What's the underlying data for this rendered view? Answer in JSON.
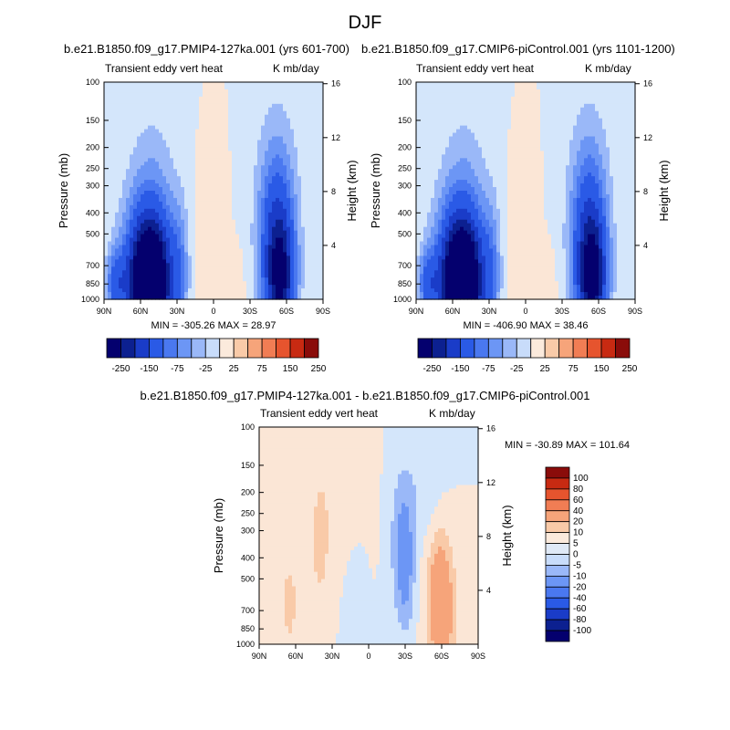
{
  "figure": {
    "title": "DJF"
  },
  "chart_data": [
    {
      "type": "heatmap",
      "case": "b.e21.B1850.f09_g17.PMIP4-127ka.001 (yrs 601-700)",
      "left_label": "Transient eddy vert heat",
      "right_label": "K mb/day",
      "xlabel": "",
      "ylabel": "Pressure (mb)",
      "y2label": "Height (km)",
      "x_ticks": [
        "90N",
        "60N",
        "30N",
        "0",
        "30S",
        "60S",
        "90S"
      ],
      "y_ticks": [
        "100",
        "150",
        "200",
        "250",
        "300",
        "400",
        "500",
        "700",
        "850",
        "1000"
      ],
      "y_tick_values": [
        100,
        150,
        200,
        250,
        300,
        400,
        500,
        700,
        850,
        1000
      ],
      "y2_ticks": [
        "16",
        "12",
        "8",
        "4"
      ],
      "y2_tick_values": [
        16,
        12,
        8,
        4
      ],
      "ylim": [
        1000,
        100
      ],
      "stats": "MIN = -305.26  MAX = 28.97",
      "min": -305.26,
      "max": 28.97,
      "blobs": [
        {
          "lat": 52,
          "p": 850,
          "w": 14,
          "d": 0.55,
          "a": -300
        },
        {
          "lat": 56,
          "p": 800,
          "w": 20,
          "d": 0.75,
          "a": -120
        },
        {
          "lat": 52,
          "p": 650,
          "w": 18,
          "d": 1.0,
          "a": -60
        },
        {
          "lat": 50,
          "p": 450,
          "w": 22,
          "d": 1.3,
          "a": -30
        },
        {
          "lat": 80,
          "p": 850,
          "w": 8,
          "d": 0.35,
          "a": -100
        },
        {
          "lat": 28,
          "p": 750,
          "w": 8,
          "d": 0.7,
          "a": -60
        },
        {
          "lat": -55,
          "p": 820,
          "w": 11,
          "d": 0.6,
          "a": -180
        },
        {
          "lat": -52,
          "p": 550,
          "w": 14,
          "d": 0.9,
          "a": -110
        },
        {
          "lat": -52,
          "p": 400,
          "w": 18,
          "d": 1.2,
          "a": -45
        },
        {
          "lat": 5,
          "p": 650,
          "w": 12,
          "d": 0.9,
          "a": 20
        },
        {
          "lat": -20,
          "p": 850,
          "w": 8,
          "d": 0.4,
          "a": 10
        }
      ]
    },
    {
      "type": "heatmap",
      "case": "b.e21.B1850.f09_g17.CMIP6-piControl.001 (yrs 1101-1200)",
      "left_label": "Transient eddy vert heat",
      "right_label": "K mb/day",
      "xlabel": "",
      "ylabel": "Pressure (mb)",
      "y2label": "Height (km)",
      "x_ticks": [
        "90N",
        "60N",
        "30N",
        "0",
        "30S",
        "60S",
        "90S"
      ],
      "y_ticks": [
        "100",
        "150",
        "200",
        "250",
        "300",
        "400",
        "500",
        "700",
        "850",
        "1000"
      ],
      "y_tick_values": [
        100,
        150,
        200,
        250,
        300,
        400,
        500,
        700,
        850,
        1000
      ],
      "y2_ticks": [
        "16",
        "12",
        "8",
        "4"
      ],
      "y2_tick_values": [
        16,
        12,
        8,
        4
      ],
      "ylim": [
        1000,
        100
      ],
      "stats": "MIN = -406.90  MAX = 38.46",
      "min": -406.9,
      "max": 38.46,
      "blobs": [
        {
          "lat": 52,
          "p": 850,
          "w": 14,
          "d": 0.55,
          "a": -300
        },
        {
          "lat": 56,
          "p": 800,
          "w": 20,
          "d": 0.75,
          "a": -120
        },
        {
          "lat": 52,
          "p": 650,
          "w": 18,
          "d": 1.0,
          "a": -60
        },
        {
          "lat": 50,
          "p": 450,
          "w": 22,
          "d": 1.3,
          "a": -30
        },
        {
          "lat": 80,
          "p": 850,
          "w": 8,
          "d": 0.35,
          "a": -100
        },
        {
          "lat": 28,
          "p": 750,
          "w": 8,
          "d": 0.7,
          "a": -60
        },
        {
          "lat": -55,
          "p": 820,
          "w": 11,
          "d": 0.6,
          "a": -200
        },
        {
          "lat": -52,
          "p": 550,
          "w": 14,
          "d": 0.9,
          "a": -110
        },
        {
          "lat": -52,
          "p": 400,
          "w": 18,
          "d": 1.2,
          "a": -45
        },
        {
          "lat": 5,
          "p": 650,
          "w": 12,
          "d": 0.9,
          "a": 20
        },
        {
          "lat": -20,
          "p": 850,
          "w": 8,
          "d": 0.4,
          "a": 10
        }
      ]
    },
    {
      "type": "heatmap",
      "case": "b.e21.B1850.f09_g17.PMIP4-127ka.001 - b.e21.B1850.f09_g17.CMIP6-piControl.001",
      "left_label": "Transient eddy vert heat",
      "right_label": "K mb/day",
      "xlabel": "",
      "ylabel": "Pressure (mb)",
      "y2label": "Height (km)",
      "x_ticks": [
        "90N",
        "60N",
        "30N",
        "0",
        "30S",
        "60S",
        "90S"
      ],
      "y_ticks": [
        "100",
        "150",
        "200",
        "250",
        "300",
        "400",
        "500",
        "700",
        "850",
        "1000"
      ],
      "y_tick_values": [
        100,
        150,
        200,
        250,
        300,
        400,
        500,
        700,
        850,
        1000
      ],
      "y2_ticks": [
        "16",
        "12",
        "8",
        "4"
      ],
      "y2_tick_values": [
        16,
        12,
        8,
        4
      ],
      "ylim": [
        1000,
        100
      ],
      "stats": "MIN = -30.89  MAX = 101.64",
      "min": -30.89,
      "max": 101.64,
      "blobs": [
        {
          "lat": -60,
          "p": 750,
          "w": 12,
          "d": 0.7,
          "a": 14
        },
        {
          "lat": -58,
          "p": 500,
          "w": 9,
          "d": 0.6,
          "a": 8
        },
        {
          "lat": -30,
          "p": 430,
          "w": 8,
          "d": 0.7,
          "a": -12
        },
        {
          "lat": -25,
          "p": 300,
          "w": 10,
          "d": 0.8,
          "a": -5
        },
        {
          "lat": 40,
          "p": 350,
          "w": 7,
          "d": 0.6,
          "a": 7
        },
        {
          "lat": 65,
          "p": 650,
          "w": 10,
          "d": 0.7,
          "a": 6
        },
        {
          "lat": 10,
          "p": 700,
          "w": 8,
          "d": 0.6,
          "a": -5
        },
        {
          "lat": -45,
          "p": 180,
          "w": 15,
          "d": 0.6,
          "a": -4
        },
        {
          "lat": 25,
          "p": 200,
          "w": 25,
          "d": 0.8,
          "a": 3
        }
      ]
    }
  ],
  "colorbars": [
    {
      "orientation": "horizontal",
      "labels": [
        "-250",
        "-150",
        "-75",
        "-25",
        "25",
        "75",
        "150",
        "250"
      ],
      "colors": [
        "#04006e",
        "#0c2090",
        "#1a3cc8",
        "#2a5ae6",
        "#4a78f0",
        "#6c96f5",
        "#9ab8f8",
        "#c8dcfa",
        "#fbeadc",
        "#f9caa8",
        "#f6a47a",
        "#f17d54",
        "#e6542e",
        "#c82a12",
        "#8a0c0a"
      ]
    },
    {
      "orientation": "horizontal",
      "labels": [
        "-250",
        "-150",
        "-75",
        "-25",
        "25",
        "75",
        "150",
        "250"
      ],
      "colors": [
        "#04006e",
        "#0c2090",
        "#1a3cc8",
        "#2a5ae6",
        "#4a78f0",
        "#6c96f5",
        "#9ab8f8",
        "#c8dcfa",
        "#fbeadc",
        "#f9caa8",
        "#f6a47a",
        "#f17d54",
        "#e6542e",
        "#c82a12",
        "#8a0c0a"
      ]
    },
    {
      "orientation": "vertical",
      "labels": [
        "100",
        "80",
        "60",
        "40",
        "20",
        "10",
        "5",
        "0",
        "-5",
        "-10",
        "-20",
        "-40",
        "-60",
        "-80",
        "-100"
      ],
      "colors": [
        "#8a0c0a",
        "#c82a12",
        "#e6542e",
        "#f17d54",
        "#f6a47a",
        "#f9caa8",
        "#fbeadc",
        "#dfe9f6",
        "#c8dcfa",
        "#9ab8f8",
        "#6c96f5",
        "#4a78f0",
        "#2a5ae6",
        "#1a3cc8",
        "#0c2090",
        "#04006e"
      ]
    }
  ]
}
